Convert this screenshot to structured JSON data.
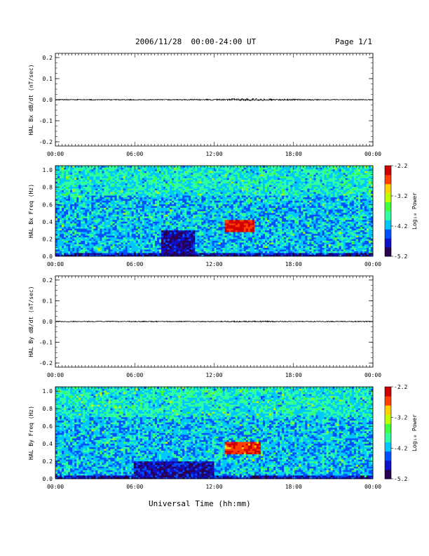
{
  "header": {
    "title": "2006/11/28  00:00-24:00 UT",
    "page": "Page 1/1"
  },
  "footer": {
    "xlabel": "Universal Time (hh:mm)"
  },
  "colors": {
    "trace": "#000000",
    "colormap": [
      "#2a0050",
      "#1010c8",
      "#0050ff",
      "#00c8ff",
      "#30ffa0",
      "#40ff40",
      "#c0ff00",
      "#ffd000",
      "#ff4000",
      "#d00000"
    ]
  },
  "chart_data": [
    {
      "type": "line",
      "xlabel": "",
      "ylabel": "HAL Bx dB/dt (nT/sec)",
      "xlim": [
        "00:00",
        "24:00"
      ],
      "x_ticks": [
        "00:00",
        "06:00",
        "12:00",
        "18:00",
        "00:00"
      ],
      "ylim": [
        -0.22,
        0.22
      ],
      "y_ticks": [
        "-0.2",
        "-0.1",
        "0.0",
        "0.1",
        "0.2"
      ],
      "series": [
        {
          "x_hours": [
            0,
            3,
            6,
            9,
            12,
            13.5,
            15,
            16,
            18,
            21,
            24
          ],
          "y_amplitude": [
            0.002,
            0.002,
            0.002,
            0.002,
            0.003,
            0.005,
            0.006,
            0.004,
            0.003,
            0.002,
            0.002
          ]
        }
      ]
    },
    {
      "type": "heatmap",
      "xlabel": "",
      "ylabel": "HAL Bx Freq (Hz)",
      "xlim": [
        "00:00",
        "24:00"
      ],
      "x_ticks": [
        "00:00",
        "06:00",
        "12:00",
        "18:00",
        "00:00"
      ],
      "ylim": [
        0,
        1.05
      ],
      "y_ticks": [
        "0.0",
        "0.2",
        "0.4",
        "0.6",
        "0.8",
        "1.0"
      ],
      "colorbar": {
        "label": "Log₁₀ Power",
        "range": [
          -5.2,
          -2.2
        ],
        "ticks": [
          "-2.2",
          "-3.2",
          "-4.2",
          "-5.2"
        ]
      },
      "features": [
        {
          "t_start": 12.8,
          "t_end": 15.0,
          "f_low": 0.28,
          "f_high": 0.43,
          "log_power": -2.4
        },
        {
          "t_start": 8.0,
          "t_end": 10.5,
          "f_low": 0.0,
          "f_high": 0.3,
          "log_power": -4.9
        }
      ]
    },
    {
      "type": "line",
      "xlabel": "",
      "ylabel": "HAL By dB/dt (nT/sec)",
      "xlim": [
        "00:00",
        "24:00"
      ],
      "x_ticks": [
        "00:00",
        "06:00",
        "12:00",
        "18:00",
        "00:00"
      ],
      "ylim": [
        -0.22,
        0.22
      ],
      "y_ticks": [
        "-0.2",
        "-0.1",
        "0.0",
        "0.1",
        "0.2"
      ],
      "series": [
        {
          "x_hours": [
            0,
            3,
            6,
            9,
            12,
            13.5,
            15,
            16,
            18,
            21,
            24
          ],
          "y_amplitude": [
            0.002,
            0.002,
            0.002,
            0.002,
            0.002,
            0.003,
            0.003,
            0.003,
            0.002,
            0.002,
            0.002
          ]
        }
      ]
    },
    {
      "type": "heatmap",
      "xlabel": "",
      "ylabel": "HAL By Freq (Hz)",
      "xlim": [
        "00:00",
        "24:00"
      ],
      "x_ticks": [
        "00:00",
        "06:00",
        "12:00",
        "18:00",
        "00:00"
      ],
      "ylim": [
        0,
        1.05
      ],
      "y_ticks": [
        "0.0",
        "0.2",
        "0.4",
        "0.6",
        "0.8",
        "1.0"
      ],
      "colorbar": {
        "label": "Log₁₀ Power",
        "range": [
          -5.2,
          -2.2
        ],
        "ticks": [
          "-2.2",
          "-3.2",
          "-4.2",
          "-5.2"
        ]
      },
      "features": [
        {
          "t_start": 12.8,
          "t_end": 15.5,
          "f_low": 0.28,
          "f_high": 0.43,
          "log_power": -2.5
        },
        {
          "t_start": 6.0,
          "t_end": 12.0,
          "f_low": 0.0,
          "f_high": 0.2,
          "log_power": -4.8
        }
      ]
    }
  ]
}
